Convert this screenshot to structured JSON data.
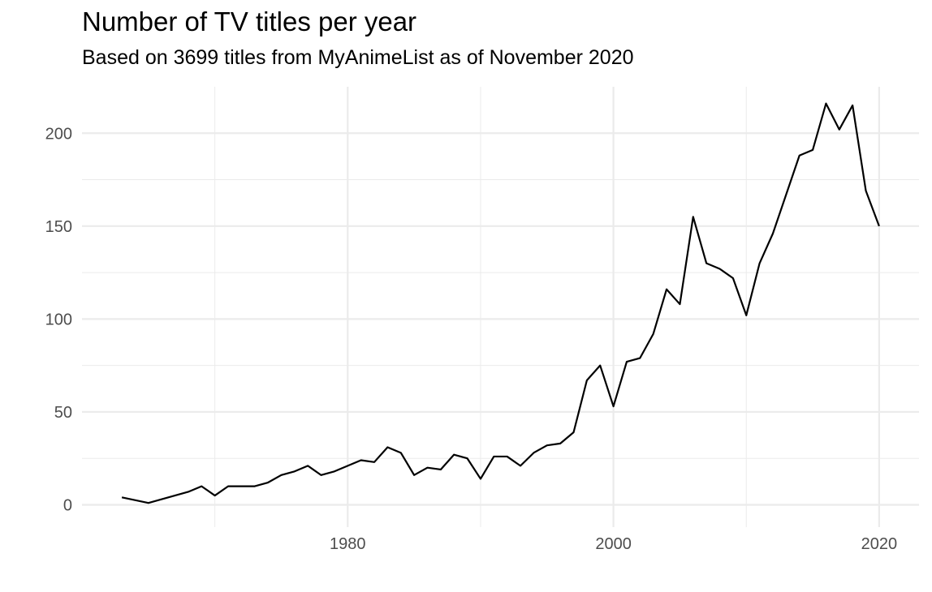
{
  "chart_data": {
    "type": "line",
    "title": "Number of TV titles per year",
    "subtitle": "Based on 3699 titles from MyAnimeList as of November 2020",
    "xlabel": "",
    "ylabel": "",
    "xlim": [
      1960,
      2023
    ],
    "ylim": [
      -12,
      225
    ],
    "x_ticks": [
      1980,
      2000,
      2020
    ],
    "x_minor_ticks": [
      1970,
      1990,
      2010
    ],
    "y_ticks": [
      0,
      50,
      100,
      150,
      200
    ],
    "y_minor_ticks": [
      25,
      75,
      125,
      175
    ],
    "grid": true,
    "legend": "none",
    "line_color": "#000000",
    "grid_color": "#ebebeb",
    "series": [
      {
        "x": [
          1963,
          1965,
          1968,
          1969,
          1970,
          1971,
          1972,
          1973,
          1974,
          1975,
          1976,
          1977,
          1978,
          1979,
          1980,
          1981,
          1982,
          1983,
          1984,
          1985,
          1986,
          1987,
          1988,
          1989,
          1990,
          1991,
          1992,
          1993,
          1994,
          1995,
          1996,
          1997,
          1998,
          1999,
          2000,
          2001,
          2002,
          2003,
          2004,
          2005,
          2006,
          2007,
          2008,
          2009,
          2010,
          2011,
          2012,
          2013,
          2014,
          2015,
          2016,
          2017,
          2018,
          2019,
          2020
        ],
        "y": [
          4,
          1,
          7,
          10,
          5,
          10,
          10,
          10,
          12,
          16,
          18,
          21,
          16,
          18,
          21,
          24,
          23,
          31,
          28,
          16,
          20,
          19,
          27,
          25,
          14,
          26,
          26,
          21,
          28,
          32,
          33,
          39,
          67,
          75,
          53,
          77,
          79,
          92,
          116,
          108,
          155,
          130,
          127,
          122,
          102,
          130,
          146,
          167,
          188,
          191,
          216,
          202,
          215,
          169,
          150
        ]
      }
    ]
  }
}
